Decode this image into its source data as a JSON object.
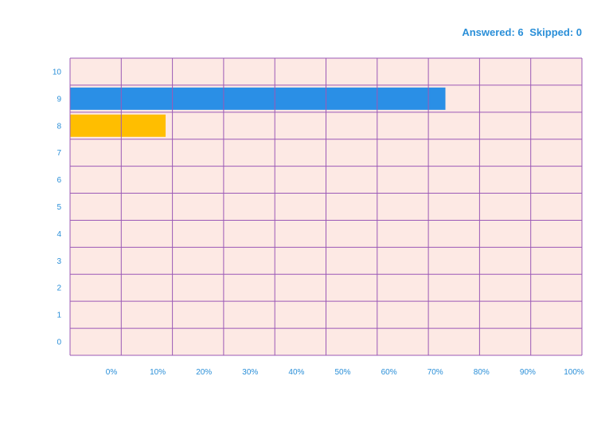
{
  "summary": {
    "answered": "Answered: 6",
    "skipped": "Skipped: 0"
  },
  "colors": {
    "plot_background": "#fde9e4",
    "grid_lines": "#9b59b6",
    "tick_labels": "#2a8fd8",
    "summary_text": "#2a8fd8"
  },
  "chart_data": {
    "type": "bar",
    "orientation": "horizontal",
    "categories": [
      "10",
      "9",
      "8",
      "7",
      "6",
      "5",
      "4",
      "3",
      "2",
      "1",
      "0"
    ],
    "values": [
      0,
      0.7333,
      0.1867,
      0,
      0,
      0,
      0,
      0,
      0,
      0,
      0
    ],
    "bar_colors": [
      "#2a8fe6",
      "#2a8fe6",
      "#ffbe00",
      "#2a8fe6",
      "#2a8fe6",
      "#2a8fe6",
      "#2a8fe6",
      "#2a8fe6",
      "#2a8fe6",
      "#2a8fe6",
      "#2a8fe6"
    ],
    "x_ticks": [
      "0%",
      "10%",
      "20%",
      "30%",
      "40%",
      "50%",
      "60%",
      "70%",
      "80%",
      "90%",
      "100%"
    ],
    "xlim": [
      0,
      1
    ],
    "grid": true
  }
}
